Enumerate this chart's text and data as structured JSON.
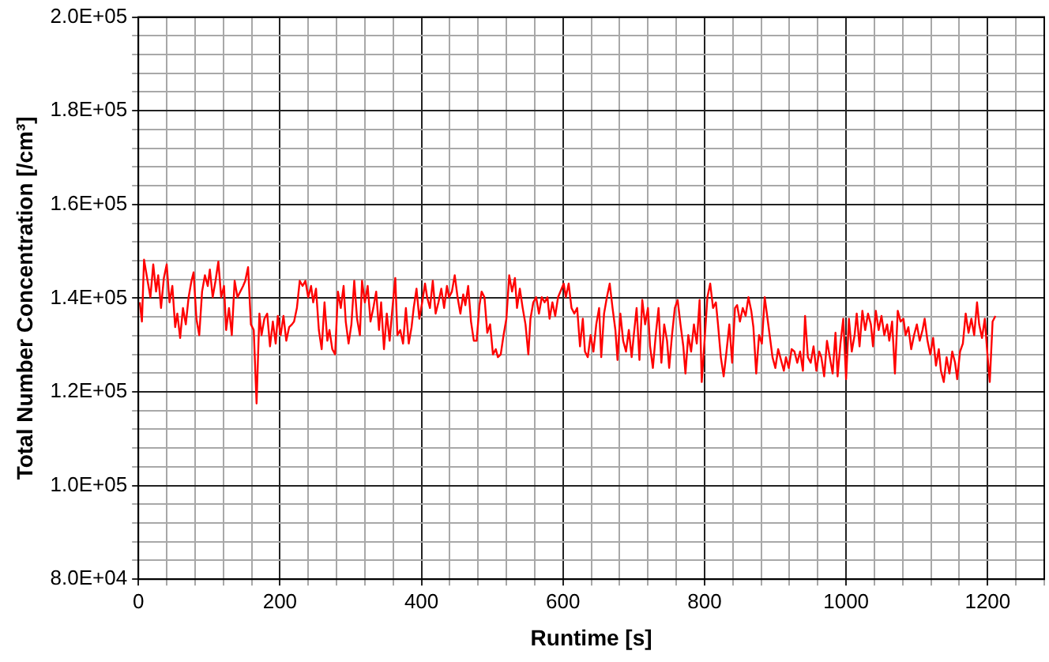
{
  "chart_data": {
    "type": "line",
    "xlabel": "Runtime [s]",
    "ylabel": "Total Number Concentration [/cm³]",
    "xlim": [
      0,
      1280
    ],
    "ylim": [
      80000,
      200000
    ],
    "xticks": [
      0,
      {
        "value": 40,
        "label": null
      },
      {
        "value": 80,
        "label": null
      },
      {
        "value": 120,
        "label": null
      },
      {
        "value": 160,
        "label": null
      },
      200,
      {
        "value": 240,
        "label": null
      },
      {
        "value": 280,
        "label": null
      },
      {
        "value": 320,
        "label": null
      },
      {
        "value": 360,
        "label": null
      },
      400,
      {
        "value": 440,
        "label": null
      },
      {
        "value": 480,
        "label": null
      },
      {
        "value": 520,
        "label": null
      },
      {
        "value": 560,
        "label": null
      },
      600,
      {
        "value": 640,
        "label": null
      },
      {
        "value": 680,
        "label": null
      },
      {
        "value": 720,
        "label": null
      },
      {
        "value": 760,
        "label": null
      },
      800,
      {
        "value": 840,
        "label": null
      },
      {
        "value": 880,
        "label": null
      },
      {
        "value": 920,
        "label": null
      },
      {
        "value": 960,
        "label": null
      },
      1000,
      {
        "value": 1040,
        "label": null
      },
      {
        "value": 1080,
        "label": null
      },
      {
        "value": 1120,
        "label": null
      },
      {
        "value": 1160,
        "label": null
      },
      1200,
      {
        "value": 1240,
        "label": null
      },
      {
        "value": 1280,
        "label": null
      }
    ],
    "yticks": [
      {
        "value": 80000,
        "label": "8.0E+04"
      },
      {
        "value": 84000,
        "label": null
      },
      {
        "value": 88000,
        "label": null
      },
      {
        "value": 92000,
        "label": null
      },
      {
        "value": 96000,
        "label": null
      },
      {
        "value": 100000,
        "label": "1.0E+05"
      },
      {
        "value": 104000,
        "label": null
      },
      {
        "value": 108000,
        "label": null
      },
      {
        "value": 112000,
        "label": null
      },
      {
        "value": 116000,
        "label": null
      },
      {
        "value": 120000,
        "label": "1.2E+05"
      },
      {
        "value": 124000,
        "label": null
      },
      {
        "value": 128000,
        "label": null
      },
      {
        "value": 132000,
        "label": null
      },
      {
        "value": 136000,
        "label": null
      },
      {
        "value": 140000,
        "label": "1.4E+05"
      },
      {
        "value": 144000,
        "label": null
      },
      {
        "value": 148000,
        "label": null
      },
      {
        "value": 152000,
        "label": null
      },
      {
        "value": 156000,
        "label": null
      },
      {
        "value": 160000,
        "label": "1.6E+05"
      },
      {
        "value": 164000,
        "label": null
      },
      {
        "value": 168000,
        "label": null
      },
      {
        "value": 172000,
        "label": null
      },
      {
        "value": 176000,
        "label": null
      },
      {
        "value": 180000,
        "label": "1.8E+05"
      },
      {
        "value": 184000,
        "label": null
      },
      {
        "value": 188000,
        "label": null
      },
      {
        "value": 192000,
        "label": null
      },
      {
        "value": 196000,
        "label": null
      },
      {
        "value": 200000,
        "label": "2.0E+05"
      }
    ],
    "grid": true,
    "legend": false,
    "marker": "none",
    "line_style": "solid",
    "series": [
      {
        "color": "#ff0000",
        "x": [
          2,
          5,
          8,
          13,
          17,
          21,
          25,
          28,
          32,
          36,
          40,
          44,
          48,
          52,
          55,
          59,
          63,
          67,
          71,
          75,
          78,
          82,
          86,
          90,
          94,
          98,
          101,
          105,
          109,
          113,
          117,
          121,
          124,
          128,
          132,
          136,
          140,
          148,
          151,
          155,
          159,
          163,
          167,
          171,
          174,
          178,
          182,
          186,
          190,
          194,
          197,
          201,
          205,
          209,
          213,
          217,
          220,
          224,
          228,
          232,
          236,
          240,
          244,
          247,
          251,
          255,
          259,
          263,
          267,
          270,
          274,
          278,
          282,
          286,
          290,
          293,
          297,
          301,
          305,
          309,
          313,
          316,
          320,
          324,
          328,
          332,
          336,
          340,
          343,
          347,
          351,
          355,
          359,
          363,
          366,
          370,
          374,
          378,
          382,
          386,
          389,
          393,
          397,
          401,
          405,
          408,
          412,
          416,
          420,
          424,
          428,
          432,
          436,
          439,
          443,
          447,
          451,
          455,
          459,
          462,
          466,
          470,
          474,
          478,
          482,
          485,
          489,
          493,
          497,
          501,
          505,
          508,
          512,
          516,
          520,
          524,
          528,
          532,
          535,
          539,
          543,
          547,
          551,
          554,
          558,
          562,
          566,
          570,
          574,
          578,
          581,
          585,
          589,
          593,
          601,
          604,
          608,
          612,
          616,
          620,
          624,
          628,
          631,
          635,
          639,
          643,
          647,
          651,
          654,
          658,
          662,
          666,
          670,
          674,
          677,
          681,
          685,
          689,
          693,
          697,
          700,
          704,
          708,
          712,
          716,
          720,
          723,
          727,
          731,
          735,
          739,
          743,
          747,
          750,
          754,
          758,
          762,
          766,
          770,
          773,
          777,
          781,
          785,
          789,
          793,
          796,
          800,
          804,
          808,
          812,
          816,
          819,
          823,
          827,
          831,
          835,
          839,
          843,
          846,
          850,
          854,
          858,
          862,
          866,
          869,
          873,
          877,
          881,
          885,
          889,
          892,
          896,
          900,
          904,
          908,
          912,
          915,
          919,
          923,
          927,
          931,
          935,
          939,
          942,
          946,
          950,
          954,
          958,
          962,
          965,
          969,
          973,
          977,
          981,
          985,
          988,
          992,
          996,
          1000,
          1004,
          1008,
          1012,
          1015,
          1019,
          1023,
          1027,
          1031,
          1035,
          1038,
          1042,
          1046,
          1050,
          1054,
          1058,
          1061,
          1065,
          1069,
          1073,
          1077,
          1081,
          1084,
          1088,
          1092,
          1096,
          1100,
          1104,
          1108,
          1111,
          1115,
          1119,
          1123,
          1127,
          1131,
          1134,
          1138,
          1142,
          1146,
          1150,
          1154,
          1157,
          1161,
          1165,
          1169,
          1173,
          1177,
          1181,
          1185,
          1188,
          1192,
          1196,
          1200,
          1203,
          1207,
          1211
        ],
        "values": [
          139100,
          135000,
          148200,
          143700,
          140200,
          147200,
          141400,
          144900,
          137900,
          144300,
          147200,
          139100,
          142600,
          133800,
          136700,
          131500,
          137900,
          134400,
          140200,
          143700,
          145500,
          135600,
          132100,
          141400,
          144900,
          142600,
          146100,
          140200,
          143700,
          147800,
          140200,
          142600,
          133200,
          137900,
          132100,
          143700,
          140200,
          142600,
          143700,
          146600,
          134400,
          133200,
          117500,
          136700,
          132100,
          135600,
          136700,
          129700,
          135000,
          130300,
          136200,
          132100,
          136200,
          130900,
          133800,
          134400,
          135000,
          137900,
          143700,
          142600,
          143700,
          140200,
          142600,
          139100,
          142000,
          133200,
          129100,
          139100,
          130900,
          133200,
          129100,
          128000,
          141400,
          137900,
          142600,
          135000,
          130300,
          134400,
          143700,
          135600,
          132100,
          143700,
          139100,
          142600,
          135000,
          137900,
          141400,
          133200,
          139100,
          129100,
          136700,
          130900,
          137900,
          144300,
          132100,
          133200,
          130300,
          137900,
          130300,
          133800,
          137900,
          142000,
          135600,
          139100,
          143100,
          140200,
          137900,
          143700,
          136700,
          139100,
          142000,
          137900,
          142600,
          140200,
          141400,
          144900,
          140200,
          136700,
          140800,
          138500,
          142600,
          135000,
          130900,
          130900,
          138500,
          141400,
          140200,
          132600,
          134400,
          128000,
          129100,
          127400,
          128000,
          132100,
          135600,
          144900,
          141400,
          144300,
          137900,
          142000,
          137900,
          134400,
          128000,
          135600,
          139100,
          140200,
          136700,
          140200,
          139100,
          140200,
          135600,
          139100,
          136200,
          140200,
          143100,
          140200,
          143100,
          137900,
          136700,
          137900,
          129700,
          135600,
          128600,
          127400,
          132100,
          128600,
          134400,
          137900,
          127400,
          136700,
          140200,
          143100,
          137900,
          133200,
          126800,
          136700,
          130900,
          128600,
          133200,
          127400,
          132100,
          137900,
          126800,
          139600,
          134400,
          137900,
          129700,
          125100,
          132100,
          137900,
          126200,
          134400,
          130900,
          125100,
          132100,
          137900,
          139600,
          134400,
          129700,
          123900,
          132100,
          128600,
          134400,
          130300,
          139600,
          122100,
          130900,
          140200,
          143100,
          137900,
          139100,
          134400,
          127400,
          123300,
          128600,
          134400,
          126200,
          137900,
          138500,
          135000,
          137900,
          136200,
          140200,
          137300,
          133800,
          123900,
          132100,
          130300,
          140200,
          135600,
          132100,
          127400,
          125100,
          129100,
          126800,
          124500,
          127400,
          125100,
          129100,
          128600,
          126200,
          128600,
          124500,
          136200,
          127400,
          126200,
          129700,
          124500,
          128600,
          127400,
          123300,
          130900,
          127400,
          123900,
          132600,
          123300,
          130300,
          135600,
          122700,
          135600,
          128600,
          132100,
          136700,
          129700,
          137300,
          133200,
          136700,
          134400,
          129700,
          137300,
          133200,
          136200,
          132100,
          134400,
          130900,
          135000,
          123900,
          137300,
          135000,
          135600,
          132100,
          133800,
          129100,
          132100,
          134400,
          130900,
          133200,
          135600,
          130900,
          128000,
          131500,
          125600,
          129100,
          124500,
          122100,
          127400,
          123900,
          128600,
          126200,
          122700,
          128600,
          130300,
          136700,
          132600,
          135600,
          132100,
          139100,
          134400,
          131500,
          135600,
          127400,
          122100,
          135000,
          136200
        ]
      }
    ]
  }
}
